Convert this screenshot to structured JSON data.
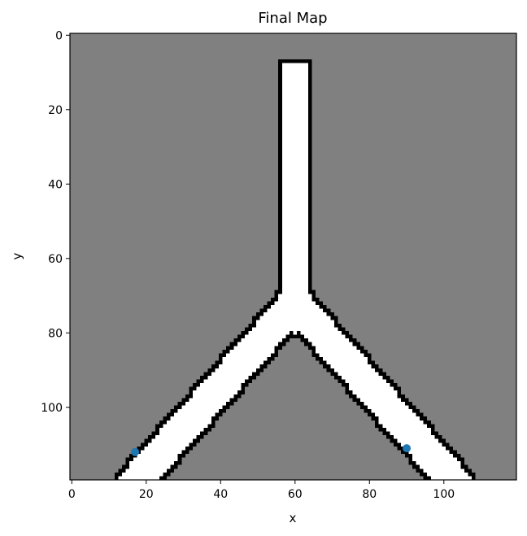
{
  "chart_data": {
    "type": "heatmap",
    "title": "Final Map",
    "xlabel": "x",
    "ylabel": "y",
    "xlim": [
      -0.5,
      119.5
    ],
    "ylim": [
      119.5,
      -0.5
    ],
    "x_ticks": [
      0,
      20,
      40,
      60,
      80,
      100
    ],
    "y_ticks": [
      0,
      20,
      40,
      60,
      80,
      100
    ],
    "y_axis_inverted": true,
    "grid": false,
    "colormap": {
      "unknown": "#808080",
      "free": "#ffffff",
      "occupied": "#000000"
    },
    "map": {
      "width": 120,
      "height": 120,
      "stem": {
        "x_range": [
          57,
          63
        ],
        "y_range": [
          8,
          72
        ]
      },
      "junction": {
        "x": 60,
        "y": 72
      },
      "left_arm": {
        "start": [
          60,
          72
        ],
        "end": [
          18,
          119
        ]
      },
      "right_arm": {
        "start": [
          60,
          72
        ],
        "end": [
          102,
          119
        ]
      }
    },
    "series": [
      {
        "type": "scatter",
        "color": "#1f77b4",
        "points": [
          {
            "x": 17,
            "y": 112
          },
          {
            "x": 90,
            "y": 111
          }
        ]
      }
    ]
  }
}
